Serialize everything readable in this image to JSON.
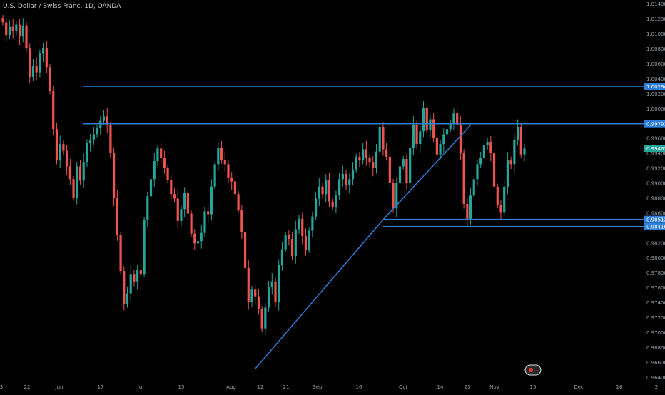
{
  "title": "U.S. Dollar / Swiss Franc, 1D, OANDA",
  "colors": {
    "up": "#26a69a",
    "down": "#ef5350",
    "line": "#2f7ed8",
    "axisText": "#9aa0a6",
    "tagText": "#ffffff",
    "lastTag": "#26a69a"
  },
  "chart_data": {
    "type": "candlestick",
    "ylim": [
      0.9635,
      1.0145
    ],
    "y_ticks": [
      "1.01400",
      "1.01200",
      "1.01000",
      "1.00800",
      "1.00600",
      "1.00400",
      "1.00200",
      "1.00000",
      "0.99800",
      "0.99600",
      "0.99400",
      "0.99200",
      "0.99000",
      "0.98800",
      "0.98600",
      "0.98400",
      "0.98200",
      "0.98000",
      "0.97800",
      "0.97600",
      "0.97400",
      "0.97200",
      "0.97000",
      "0.96800",
      "0.96600",
      "0.96400"
    ],
    "x_ticks": [
      "3",
      "22",
      "Jun",
      "17",
      "Jul",
      "15",
      "Aug",
      "12",
      "21",
      "Sep",
      "16",
      "Oct",
      "14",
      "23",
      "Nov",
      "15",
      "Dec",
      "16",
      "2"
    ],
    "horizontal_levels": [
      {
        "value": 1.00294,
        "label": "1.00294"
      },
      {
        "value": 0.99791,
        "label": "0.99791"
      },
      {
        "value": 0.98512,
        "label": "0.98512"
      },
      {
        "value": 0.98416,
        "label": "0.98416"
      }
    ],
    "last_price": {
      "value": 0.99463,
      "label": "0.99463"
    },
    "candles_close": [
      1.0115,
      1.0098,
      1.0109,
      1.0104,
      1.0112,
      1.0096,
      1.0111,
      1.008,
      1.0042,
      1.0057,
      1.0048,
      1.0073,
      1.008,
      1.0055,
      1.0023,
      0.9972,
      0.993,
      0.9952,
      0.9943,
      0.9922,
      0.9905,
      0.988,
      0.9922,
      0.9903,
      0.9928,
      0.9953,
      0.9958,
      0.9965,
      0.9973,
      0.9983,
      0.9989,
      0.9977,
      0.994,
      0.988,
      0.983,
      0.9782,
      0.9738,
      0.9752,
      0.9778,
      0.9768,
      0.9783,
      0.9778,
      0.985,
      0.9882,
      0.9905,
      0.9929,
      0.9946,
      0.9933,
      0.992,
      0.9904,
      0.9885,
      0.9879,
      0.9849,
      0.9865,
      0.9887,
      0.9859,
      0.9832,
      0.9819,
      0.9822,
      0.9833,
      0.9862,
      0.9858,
      0.9895,
      0.9925,
      0.9947,
      0.9931,
      0.9925,
      0.9907,
      0.9902,
      0.9885,
      0.9864,
      0.9834,
      0.9786,
      0.974,
      0.9757,
      0.9748,
      0.9731,
      0.9705,
      0.9733,
      0.976,
      0.9768,
      0.974,
      0.979,
      0.9811,
      0.983,
      0.9825,
      0.9802,
      0.9838,
      0.9852,
      0.9829,
      0.981,
      0.9836,
      0.9855,
      0.9879,
      0.9895,
      0.9885,
      0.9904,
      0.9875,
      0.9868,
      0.9883,
      0.9905,
      0.9912,
      0.9897,
      0.9905,
      0.9918,
      0.9935,
      0.993,
      0.9945,
      0.9933,
      0.9928,
      0.992,
      0.9942,
      0.9975,
      0.9945,
      0.9935,
      0.99,
      0.9866,
      0.99,
      0.9922,
      0.9932,
      0.99,
      0.9947,
      0.9978,
      0.9952,
      0.9969,
      1.0,
      0.997,
      0.9985,
      0.996,
      0.9938,
      0.9952,
      0.9965,
      0.9972,
      0.998,
      0.9993,
      0.9978,
      0.994,
      0.9872,
      0.9852,
      0.9883,
      0.9905,
      0.9925,
      0.9933,
      0.995,
      0.9955,
      0.994,
      0.9895,
      0.987,
      0.986,
      0.9895,
      0.993,
      0.9925,
      0.9958,
      0.9975,
      0.9938,
      0.9946
    ],
    "series": [
      {
        "name": "",
        "values": []
      }
    ]
  }
}
